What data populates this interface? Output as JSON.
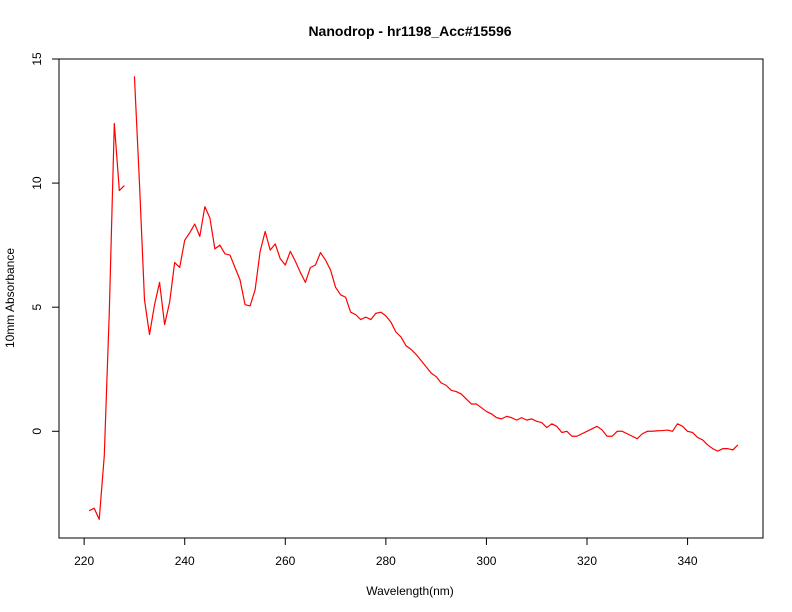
{
  "chart_data": {
    "type": "line",
    "title": "Nanodrop - hr1198_Acc#15596",
    "xlabel": "Wavelength(nm)",
    "ylabel": "10mm Absorbance",
    "xlim": [
      215,
      355
    ],
    "ylim": [
      -4.3,
      15
    ],
    "x_ticks": [
      220,
      240,
      260,
      280,
      300,
      320,
      340
    ],
    "x_tick_labels": [
      "220",
      "240",
      "260",
      "280",
      "300",
      "320",
      "340"
    ],
    "y_ticks": [
      0,
      5,
      10,
      15
    ],
    "y_tick_labels": [
      "0",
      "5",
      "10",
      "15"
    ],
    "grid": false,
    "series": [
      {
        "color": "#ff0000",
        "segments": [
          [
            [
              221,
              -3.2
            ],
            [
              222,
              -3.1
            ],
            [
              223,
              -3.55
            ],
            [
              224,
              -1.0
            ],
            [
              225,
              4.8
            ],
            [
              226,
              12.4
            ],
            [
              227,
              9.7
            ],
            [
              228,
              9.9
            ]
          ],
          [
            [
              230,
              14.3
            ],
            [
              231,
              10.0
            ],
            [
              232,
              5.3
            ],
            [
              233,
              3.9
            ],
            [
              234,
              5.1
            ],
            [
              235,
              6.0
            ],
            [
              236,
              4.3
            ],
            [
              237,
              5.2
            ],
            [
              238,
              6.8
            ],
            [
              239,
              6.6
            ],
            [
              240,
              7.7
            ],
            [
              241,
              8.0
            ],
            [
              242,
              8.35
            ],
            [
              243,
              7.85
            ],
            [
              244,
              9.05
            ],
            [
              245,
              8.6
            ],
            [
              246,
              7.35
            ],
            [
              247,
              7.5
            ],
            [
              248,
              7.15
            ],
            [
              249,
              7.1
            ],
            [
              250,
              6.6
            ],
            [
              251,
              6.1
            ],
            [
              252,
              5.1
            ],
            [
              253,
              5.05
            ],
            [
              254,
              5.7
            ],
            [
              255,
              7.25
            ],
            [
              256,
              8.05
            ],
            [
              257,
              7.3
            ],
            [
              258,
              7.55
            ],
            [
              259,
              6.95
            ],
            [
              260,
              6.7
            ],
            [
              261,
              7.25
            ],
            [
              262,
              6.85
            ],
            [
              263,
              6.4
            ],
            [
              264,
              6.0
            ],
            [
              265,
              6.6
            ],
            [
              266,
              6.7
            ],
            [
              267,
              7.2
            ],
            [
              268,
              6.9
            ],
            [
              269,
              6.5
            ],
            [
              270,
              5.8
            ],
            [
              271,
              5.5
            ],
            [
              272,
              5.4
            ],
            [
              273,
              4.8
            ],
            [
              274,
              4.7
            ],
            [
              275,
              4.5
            ],
            [
              276,
              4.6
            ],
            [
              277,
              4.5
            ],
            [
              278,
              4.75
            ],
            [
              279,
              4.8
            ],
            [
              280,
              4.65
            ],
            [
              281,
              4.4
            ],
            [
              282,
              4.0
            ],
            [
              283,
              3.8
            ],
            [
              284,
              3.45
            ],
            [
              285,
              3.3
            ],
            [
              286,
              3.1
            ],
            [
              287,
              2.85
            ],
            [
              288,
              2.6
            ],
            [
              289,
              2.35
            ],
            [
              290,
              2.2
            ],
            [
              291,
              1.95
            ],
            [
              292,
              1.85
            ],
            [
              293,
              1.65
            ],
            [
              294,
              1.6
            ],
            [
              295,
              1.5
            ],
            [
              296,
              1.3
            ],
            [
              297,
              1.1
            ],
            [
              298,
              1.1
            ],
            [
              299,
              0.95
            ],
            [
              300,
              0.8
            ],
            [
              301,
              0.7
            ],
            [
              302,
              0.55
            ],
            [
              303,
              0.5
            ],
            [
              304,
              0.6
            ],
            [
              305,
              0.55
            ],
            [
              306,
              0.45
            ],
            [
              307,
              0.55
            ],
            [
              308,
              0.45
            ],
            [
              309,
              0.5
            ],
            [
              310,
              0.4
            ],
            [
              311,
              0.35
            ],
            [
              312,
              0.15
            ],
            [
              313,
              0.3
            ],
            [
              314,
              0.2
            ],
            [
              315,
              -0.05
            ],
            [
              316,
              0.0
            ],
            [
              317,
              -0.2
            ],
            [
              318,
              -0.2
            ],
            [
              319,
              -0.1
            ],
            [
              320,
              0.0
            ],
            [
              321,
              0.1
            ],
            [
              322,
              0.2
            ],
            [
              323,
              0.05
            ],
            [
              324,
              -0.2
            ],
            [
              325,
              -0.2
            ],
            [
              326,
              0.0
            ],
            [
              327,
              0.0
            ],
            [
              328,
              -0.1
            ],
            [
              329,
              -0.2
            ],
            [
              330,
              -0.3
            ],
            [
              331,
              -0.1
            ],
            [
              332,
              0.0
            ],
            [
              333,
              0.0
            ],
            [
              334,
              0.02
            ],
            [
              335,
              0.03
            ],
            [
              336,
              0.05
            ],
            [
              337,
              0.0
            ],
            [
              338,
              0.3
            ],
            [
              339,
              0.2
            ],
            [
              340,
              0.0
            ],
            [
              341,
              -0.05
            ],
            [
              342,
              -0.25
            ],
            [
              343,
              -0.35
            ],
            [
              344,
              -0.55
            ],
            [
              345,
              -0.7
            ],
            [
              346,
              -0.8
            ],
            [
              347,
              -0.7
            ],
            [
              348,
              -0.7
            ],
            [
              349,
              -0.75
            ],
            [
              350,
              -0.55
            ]
          ]
        ]
      }
    ]
  }
}
